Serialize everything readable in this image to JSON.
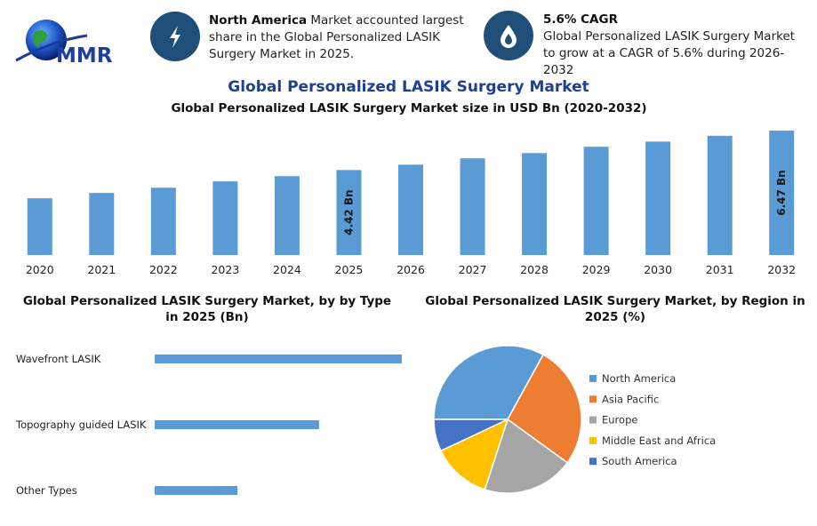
{
  "header": {
    "logo": "MMR",
    "highlights": [
      {
        "title": "North America",
        "text": "Market accounted largest share in the Global Personalized LASIK Surgery Market in 2025."
      },
      {
        "title": "5.6% CAGR",
        "text": "Global Personalized LASIK Surgery Market to grow at a CAGR of 5.6% during 2026-2032"
      }
    ]
  },
  "title": "Global Personalized LASIK Surgery Market",
  "chart_data": [
    {
      "type": "bar",
      "title": "Global Personalized LASIK Surgery Market size in USD Bn (2020-2032)",
      "categories": [
        "2020",
        "2021",
        "2022",
        "2023",
        "2024",
        "2025",
        "2026",
        "2027",
        "2028",
        "2029",
        "2030",
        "2031",
        "2032"
      ],
      "values": [
        2.95,
        3.23,
        3.5,
        3.83,
        4.1,
        4.42,
        4.7,
        5.03,
        5.3,
        5.63,
        5.9,
        6.2,
        6.47
      ],
      "value_labels": [
        null,
        null,
        null,
        null,
        null,
        "4.42 Bn",
        null,
        null,
        null,
        null,
        null,
        null,
        "6.47 Bn"
      ],
      "color": "#5b9bd5"
    },
    {
      "type": "bar",
      "horizontal": true,
      "title": "Global Personalized LASIK Surgery Market, by by Type in 2025 (Bn)",
      "categories": [
        "Wavefront LASIK",
        "Topography guided LASIK",
        "Other Types"
      ],
      "values": [
        2.21,
        1.47,
        0.74
      ],
      "color": "#5b9bd5"
    },
    {
      "type": "pie",
      "title": "Global Personalized LASIK Surgery Market, by Region in 2025 (%)",
      "categories": [
        "North America",
        "Asia Pacific",
        "Europe",
        "Middle East and Africa",
        "South America"
      ],
      "values": [
        33,
        27,
        20,
        13,
        7
      ],
      "colors": [
        "#5b9bd5",
        "#ed7d31",
        "#a5a5a5",
        "#ffc000",
        "#4472c4"
      ],
      "legend": "right"
    }
  ]
}
